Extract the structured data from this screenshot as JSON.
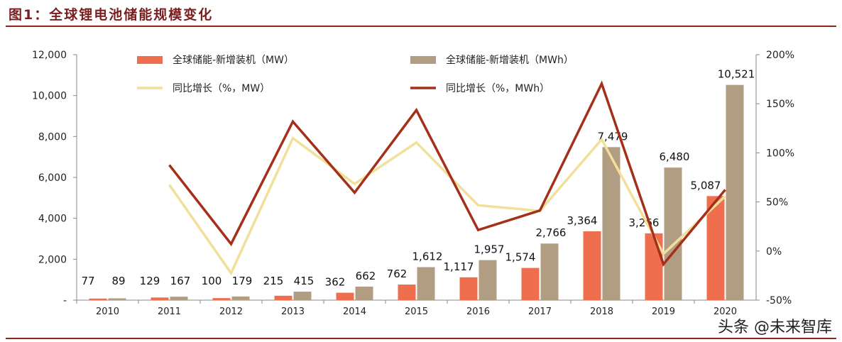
{
  "title": "图1：全球锂电池储能规模变化",
  "watermark": "头条 @未来智库",
  "colors": {
    "mw_bar": "#ef6e4e",
    "mwh_bar": "#b19d81",
    "mw_line": "#f1df9a",
    "mwh_line": "#a4301a",
    "title": "#7a1f1f"
  },
  "chart_data": {
    "type": "bar+line",
    "categories": [
      "2010",
      "2011",
      "2012",
      "2013",
      "2014",
      "2015",
      "2016",
      "2017",
      "2018",
      "2019",
      "2020"
    ],
    "series": [
      {
        "name": "全球储能-新增装机（MW）",
        "type": "bar",
        "axis": "left",
        "values": [
          77,
          129,
          100,
          215,
          362,
          762,
          1117,
          1574,
          3364,
          3266,
          5087
        ],
        "labels": [
          "77",
          "129",
          "100",
          "215",
          "362",
          "762",
          "1,117",
          "1,574",
          "3,364",
          "3,266",
          "5,087"
        ]
      },
      {
        "name": "全球储能-新增装机（MWh）",
        "type": "bar",
        "axis": "left",
        "values": [
          89,
          167,
          179,
          415,
          662,
          1612,
          1957,
          2766,
          7479,
          6480,
          10521
        ],
        "labels": [
          "89",
          "167",
          "179",
          "415",
          "662",
          "1,612",
          "1,957",
          "2,766",
          "7,479",
          "6,480",
          "10,521"
        ]
      },
      {
        "name": "同比增长（%，MW）",
        "type": "line",
        "axis": "right",
        "values": [
          null,
          67.5,
          -22.5,
          115,
          68.4,
          110.5,
          46.6,
          40.9,
          113.7,
          -2.9,
          55.8
        ]
      },
      {
        "name": "同比增长（%，MWh）",
        "type": "line",
        "axis": "right",
        "values": [
          null,
          87.6,
          7.2,
          131.8,
          59.5,
          143.5,
          21.4,
          41.3,
          170.4,
          -13.4,
          62.4
        ]
      }
    ],
    "left_axis": {
      "range": [
        0,
        12000
      ],
      "ticks": [
        "-",
        "2,000",
        "4,000",
        "6,000",
        "8,000",
        "10,000",
        "12,000"
      ]
    },
    "right_axis": {
      "range": [
        -50,
        200
      ],
      "ticks": [
        "-50%",
        "0%",
        "50%",
        "100%",
        "150%",
        "200%"
      ]
    },
    "grid": false,
    "legend": "top"
  }
}
